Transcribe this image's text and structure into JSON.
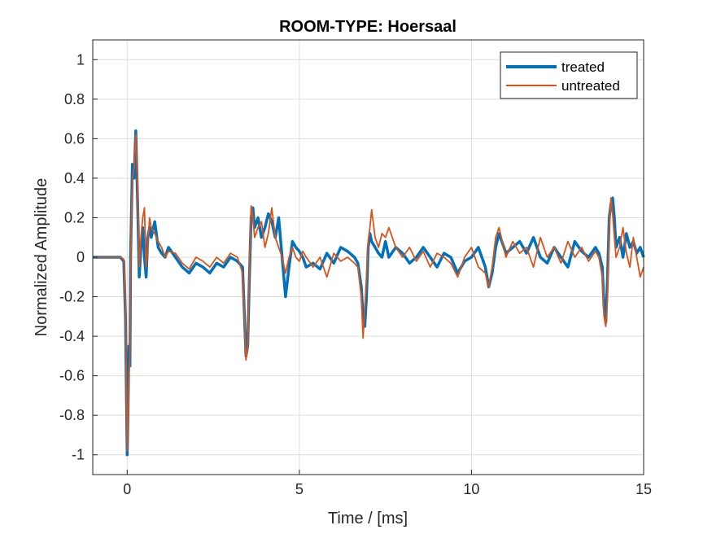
{
  "chart_data": {
    "type": "line",
    "title": "ROOM-TYPE: Hoersaal",
    "xlabel": "Time / [ms]",
    "ylabel": "Normalized Amplitude",
    "xlim": [
      -1,
      15
    ],
    "ylim": [
      -1.1,
      1.1
    ],
    "xticks": [
      0,
      5,
      10,
      15
    ],
    "xtick_labels": [
      "0",
      "5",
      "10",
      "15"
    ],
    "yticks": [
      -1,
      -0.8,
      -0.6,
      -0.4,
      -0.2,
      0,
      0.2,
      0.4,
      0.6,
      0.8,
      1
    ],
    "ytick_labels": [
      "-1",
      "-0.8",
      "-0.6",
      "-0.4",
      "-0.2",
      "0",
      "0.2",
      "0.4",
      "0.6",
      "0.8",
      "1"
    ],
    "grid": true,
    "legend_position": "top-right",
    "series": [
      {
        "name": "treated",
        "color": "#0072BD",
        "line_width": "thick",
        "x": [
          -1,
          -0.5,
          -0.2,
          -0.1,
          -0.05,
          0,
          0.03,
          0.05,
          0.08,
          0.1,
          0.15,
          0.2,
          0.25,
          0.3,
          0.35,
          0.4,
          0.45,
          0.5,
          0.55,
          0.6,
          0.65,
          0.7,
          0.8,
          0.9,
          1.0,
          1.1,
          1.2,
          1.4,
          1.6,
          1.8,
          2.0,
          2.2,
          2.4,
          2.6,
          2.8,
          3.0,
          3.2,
          3.35,
          3.45,
          3.5,
          3.55,
          3.6,
          3.65,
          3.7,
          3.8,
          3.9,
          4.0,
          4.1,
          4.2,
          4.3,
          4.4,
          4.5,
          4.6,
          4.7,
          4.8,
          4.9,
          5.0,
          5.1,
          5.2,
          5.4,
          5.6,
          5.8,
          6.0,
          6.2,
          6.4,
          6.6,
          6.7,
          6.8,
          6.85,
          6.9,
          6.95,
          7.0,
          7.05,
          7.1,
          7.2,
          7.3,
          7.4,
          7.5,
          7.6,
          7.8,
          8.0,
          8.2,
          8.4,
          8.6,
          8.8,
          9.0,
          9.2,
          9.4,
          9.6,
          9.8,
          10.0,
          10.2,
          10.4,
          10.5,
          10.6,
          10.7,
          10.8,
          11.0,
          11.2,
          11.4,
          11.6,
          11.8,
          12.0,
          12.2,
          12.4,
          12.6,
          12.8,
          13.0,
          13.2,
          13.4,
          13.6,
          13.7,
          13.8,
          13.85,
          13.9,
          13.95,
          14.0,
          14.05,
          14.1,
          14.15,
          14.2,
          14.3,
          14.4,
          14.5,
          14.6,
          14.7,
          14.8,
          14.9,
          15.0
        ],
        "y": [
          0.0,
          0.0,
          0.0,
          -0.02,
          -0.3,
          -1.0,
          -0.7,
          -0.45,
          -0.55,
          0.0,
          0.47,
          0.4,
          0.64,
          0.3,
          -0.1,
          0.05,
          0.15,
          0.0,
          -0.1,
          0.1,
          0.15,
          0.1,
          0.18,
          0.05,
          0.02,
          0.0,
          0.05,
          0.0,
          -0.05,
          -0.08,
          -0.03,
          -0.05,
          -0.08,
          -0.03,
          -0.05,
          0.0,
          -0.02,
          -0.05,
          -0.5,
          -0.45,
          -0.1,
          0.2,
          0.25,
          0.15,
          0.2,
          0.1,
          0.15,
          0.22,
          0.18,
          0.1,
          0.2,
          0.0,
          -0.2,
          -0.05,
          0.08,
          0.05,
          0.03,
          0.0,
          -0.05,
          -0.03,
          -0.06,
          0.02,
          -0.03,
          0.05,
          0.03,
          0.0,
          -0.03,
          -0.15,
          -0.3,
          -0.35,
          -0.2,
          0.05,
          0.12,
          0.08,
          0.05,
          0.02,
          0.0,
          0.08,
          0.0,
          0.05,
          0.02,
          -0.03,
          0.0,
          0.05,
          0.0,
          -0.05,
          0.02,
          0.0,
          -0.08,
          -0.02,
          0.0,
          0.05,
          -0.05,
          -0.15,
          -0.08,
          0.05,
          0.12,
          0.02,
          0.05,
          0.08,
          0.02,
          0.1,
          0.0,
          -0.03,
          0.05,
          0.0,
          -0.05,
          0.08,
          0.03,
          0.0,
          0.05,
          0.02,
          -0.05,
          -0.25,
          -0.33,
          -0.1,
          0.2,
          0.27,
          0.3,
          0.2,
          0.05,
          0.1,
          0.0,
          0.12,
          0.05,
          0.08,
          0.02,
          0.05,
          0.0
        ]
      },
      {
        "name": "untreated",
        "color": "#D95319",
        "line_width": "thin",
        "x": [
          -1,
          -0.5,
          -0.2,
          -0.1,
          -0.05,
          0,
          0.03,
          0.05,
          0.08,
          0.1,
          0.15,
          0.2,
          0.25,
          0.3,
          0.35,
          0.4,
          0.45,
          0.5,
          0.55,
          0.6,
          0.65,
          0.7,
          0.8,
          0.9,
          1.0,
          1.1,
          1.2,
          1.4,
          1.6,
          1.8,
          2.0,
          2.2,
          2.4,
          2.6,
          2.8,
          3.0,
          3.2,
          3.35,
          3.45,
          3.5,
          3.55,
          3.6,
          3.65,
          3.7,
          3.8,
          3.9,
          4.0,
          4.1,
          4.2,
          4.3,
          4.4,
          4.5,
          4.6,
          4.7,
          4.8,
          4.9,
          5.0,
          5.1,
          5.2,
          5.4,
          5.6,
          5.8,
          6.0,
          6.2,
          6.4,
          6.6,
          6.7,
          6.8,
          6.85,
          6.9,
          6.95,
          7.0,
          7.05,
          7.1,
          7.2,
          7.3,
          7.4,
          7.5,
          7.6,
          7.8,
          8.0,
          8.2,
          8.4,
          8.6,
          8.8,
          9.0,
          9.2,
          9.4,
          9.6,
          9.8,
          10.0,
          10.2,
          10.4,
          10.5,
          10.6,
          10.7,
          10.8,
          11.0,
          11.2,
          11.4,
          11.6,
          11.8,
          12.0,
          12.2,
          12.4,
          12.6,
          12.8,
          13.0,
          13.2,
          13.4,
          13.6,
          13.7,
          13.8,
          13.85,
          13.9,
          13.95,
          14.0,
          14.05,
          14.1,
          14.15,
          14.2,
          14.3,
          14.4,
          14.5,
          14.6,
          14.7,
          14.8,
          14.9,
          15.0
        ],
        "y": [
          0.0,
          0.0,
          0.0,
          -0.01,
          -0.25,
          -0.98,
          -0.75,
          -0.6,
          -0.5,
          -0.05,
          0.4,
          0.45,
          0.62,
          0.4,
          -0.05,
          0.1,
          0.2,
          0.25,
          -0.05,
          0.05,
          0.2,
          0.15,
          0.12,
          0.08,
          0.05,
          0.0,
          0.03,
          0.02,
          -0.03,
          -0.06,
          0.0,
          -0.02,
          -0.05,
          0.0,
          -0.03,
          0.02,
          0.0,
          -0.08,
          -0.52,
          -0.45,
          -0.05,
          0.26,
          0.2,
          0.1,
          0.15,
          0.18,
          0.05,
          0.12,
          0.25,
          0.1,
          0.05,
          0.0,
          -0.08,
          0.0,
          0.05,
          0.0,
          -0.02,
          0.03,
          0.0,
          -0.05,
          0.0,
          -0.1,
          0.02,
          -0.02,
          0.0,
          -0.03,
          -0.05,
          -0.2,
          -0.41,
          -0.25,
          -0.1,
          0.08,
          0.15,
          0.24,
          0.1,
          0.05,
          0.12,
          0.1,
          0.15,
          0.05,
          0.0,
          0.05,
          -0.02,
          0.03,
          -0.05,
          0.02,
          0.0,
          -0.03,
          -0.1,
          0.0,
          0.05,
          -0.05,
          -0.08,
          -0.15,
          -0.05,
          0.1,
          0.15,
          0.0,
          0.08,
          0.02,
          0.05,
          -0.05,
          0.1,
          0.0,
          0.05,
          -0.03,
          0.08,
          0.0,
          0.05,
          -0.02,
          0.03,
          0.0,
          -0.1,
          -0.3,
          -0.35,
          -0.2,
          0.15,
          0.3,
          0.22,
          0.1,
          0.0,
          0.05,
          0.15,
          0.02,
          -0.05,
          0.1,
          0.0,
          -0.1,
          -0.05
        ]
      }
    ]
  }
}
